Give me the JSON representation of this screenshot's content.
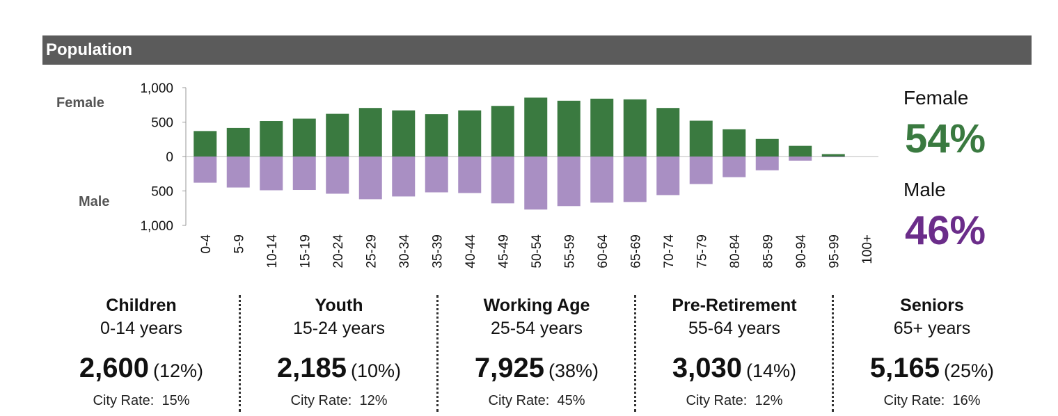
{
  "header": {
    "title": "Population"
  },
  "chart_data": {
    "type": "bar",
    "categories": [
      "0-4",
      "5-9",
      "10-14",
      "15-19",
      "20-24",
      "25-29",
      "30-34",
      "35-39",
      "40-44",
      "45-49",
      "50-54",
      "55-59",
      "60-64",
      "65-69",
      "70-74",
      "75-79",
      "80-84",
      "85-89",
      "90-94",
      "95-99",
      "100+"
    ],
    "series": [
      {
        "name": "Female",
        "values": [
          370,
          415,
          515,
          550,
          620,
          705,
          670,
          615,
          670,
          735,
          855,
          810,
          840,
          830,
          705,
          520,
          395,
          255,
          155,
          35,
          0
        ]
      },
      {
        "name": "Male",
        "values": [
          380,
          450,
          490,
          485,
          540,
          620,
          580,
          520,
          530,
          680,
          770,
          720,
          670,
          660,
          560,
          400,
          300,
          200,
          60,
          10,
          0
        ]
      }
    ],
    "y_tick_labels": [
      "1,000",
      "500",
      "0",
      "500",
      "1,000"
    ],
    "ylim": [
      -1000,
      1000
    ],
    "side_labels": {
      "top": "Female",
      "bottom": "Male"
    },
    "colors": {
      "female": "#3a7a40",
      "male": "#a98fc3",
      "female_text": "#3a7a40",
      "male_text": "#6b2d8a"
    }
  },
  "summary": {
    "female_label": "Female",
    "female_pct": "54%",
    "male_label": "Male",
    "male_pct": "46%"
  },
  "groups": [
    {
      "name": "Children",
      "range": "0-14 years",
      "count": "2,600",
      "pct": "(12%)",
      "rate_label": "City Rate:",
      "rate": "15%"
    },
    {
      "name": "Youth",
      "range": "15-24 years",
      "count": "2,185",
      "pct": "(10%)",
      "rate_label": "City Rate:",
      "rate": "12%"
    },
    {
      "name": "Working Age",
      "range": "25-54 years",
      "count": "7,925",
      "pct": "(38%)",
      "rate_label": "City Rate:",
      "rate": "45%"
    },
    {
      "name": "Pre-Retirement",
      "range": "55-64 years",
      "count": "3,030",
      "pct": "(14%)",
      "rate_label": "City Rate:",
      "rate": "12%"
    },
    {
      "name": "Seniors",
      "range": "65+ years",
      "count": "5,165",
      "pct": "(25%)",
      "rate_label": "City Rate:",
      "rate": "16%"
    }
  ]
}
